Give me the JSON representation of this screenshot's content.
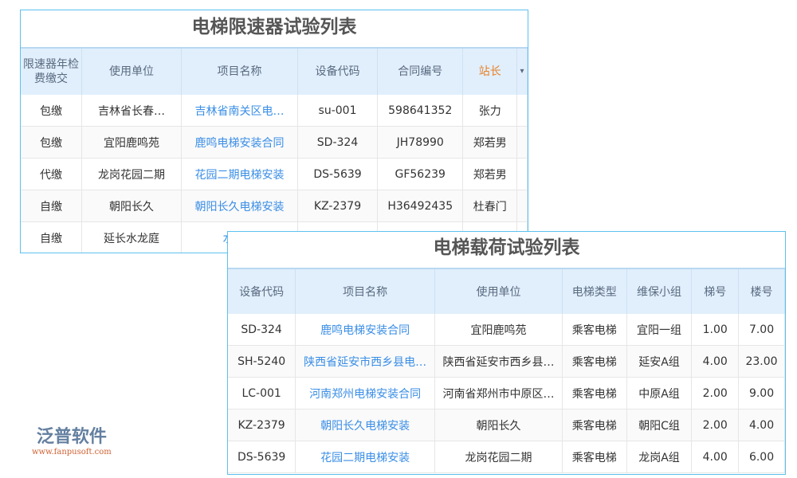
{
  "table1": {
    "title": "电梯限速器试验列表",
    "headers": [
      "限速器年检费缴交",
      "使用单位",
      "项目名称",
      "设备代码",
      "合同编号",
      "站长"
    ],
    "rows": [
      [
        "包缴",
        "吉林省长春…",
        "吉林省南关区电…",
        "su-001",
        "598641352",
        "张力"
      ],
      [
        "包缴",
        "宜阳鹿鸣苑",
        "鹿鸣电梯安装合同",
        "SD-324",
        "JH78990",
        "郑若男"
      ],
      [
        "代缴",
        "龙岗花园二期",
        "花园二期电梯安装",
        "DS-5639",
        "GF56239",
        "郑若男"
      ],
      [
        "自缴",
        "朝阳长久",
        "朝阳长久电梯安装",
        "KZ-2379",
        "H36492435",
        "杜春门"
      ],
      [
        "自缴",
        "延长水龙庭",
        "水龙庭",
        "",
        "",
        ""
      ]
    ]
  },
  "table2": {
    "title": "电梯载荷试验列表",
    "headers": [
      "设备代码",
      "项目名称",
      "使用单位",
      "电梯类型",
      "维保小组",
      "梯号",
      "楼号"
    ],
    "rows": [
      [
        "SD-324",
        "鹿鸣电梯安装合同",
        "宜阳鹿鸣苑",
        "乘客电梯",
        "宜阳一组",
        "1.00",
        "7.00"
      ],
      [
        "SH-5240",
        "陕西省延安市西乡县电…",
        "陕西省延安市西乡县…",
        "乘客电梯",
        "延安A组",
        "4.00",
        "23.00"
      ],
      [
        "LC-001",
        "河南郑州电梯安装合同",
        "河南省郑州市中原区…",
        "乘客电梯",
        "中原A组",
        "2.00",
        "9.00"
      ],
      [
        "KZ-2379",
        "朝阳长久电梯安装",
        "朝阳长久",
        "乘客电梯",
        "朝阳C组",
        "2.00",
        "4.00"
      ],
      [
        "DS-5639",
        "花园二期电梯安装",
        "龙岗花园二期",
        "乘客电梯",
        "龙岗A组",
        "4.00",
        "6.00"
      ]
    ]
  },
  "logo": {
    "name": "泛普软件",
    "url": "www.fanpusoft.com"
  }
}
